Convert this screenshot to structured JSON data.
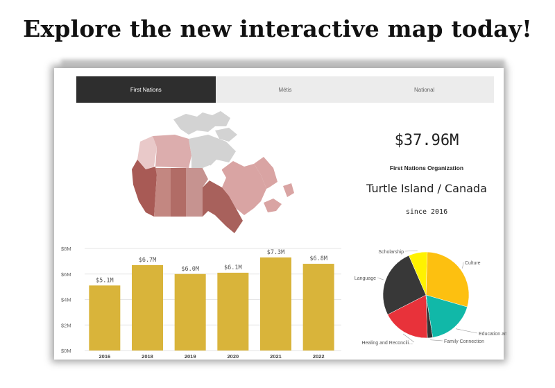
{
  "headline": "Explore the new interactive map today!",
  "tabs": [
    {
      "label": "First Nations",
      "active": true
    },
    {
      "label": "Métis",
      "active": false
    },
    {
      "label": "National",
      "active": false
    }
  ],
  "kpi": {
    "value": "$37.96M",
    "organization": "First Nations Organization",
    "region": "Turtle Island / Canada",
    "since": "since 2016"
  },
  "colors": {
    "bar": "#D9B43A",
    "active_tab": "#2E2E2E",
    "tab_bg": "#ECECEC"
  },
  "chart_data": [
    {
      "type": "bar",
      "categories": [
        "2016",
        "2018",
        "2019",
        "2020",
        "2021",
        "2022"
      ],
      "values": [
        5.1,
        6.7,
        6.0,
        6.1,
        7.3,
        6.8
      ],
      "data_labels": [
        "$5.1M",
        "$6.7M",
        "$6.0M",
        "$6.1M",
        "$7.3M",
        "$6.8M"
      ],
      "ytick_labels": [
        "$0M",
        "$2M",
        "$4M",
        "$6M",
        "$8M"
      ],
      "ylim": [
        0,
        8
      ],
      "grid": true
    },
    {
      "type": "pie",
      "labels": [
        "Culture",
        "Education and...",
        "Family Connection",
        "Healing and Reconcili...",
        "Language",
        "Scholarship"
      ],
      "values": [
        29,
        18,
        2,
        18,
        26,
        7
      ],
      "colors": [
        "#FDC010",
        "#11B8A8",
        "#333333",
        "#E8323A",
        "#383838",
        "#FFF200"
      ]
    }
  ]
}
